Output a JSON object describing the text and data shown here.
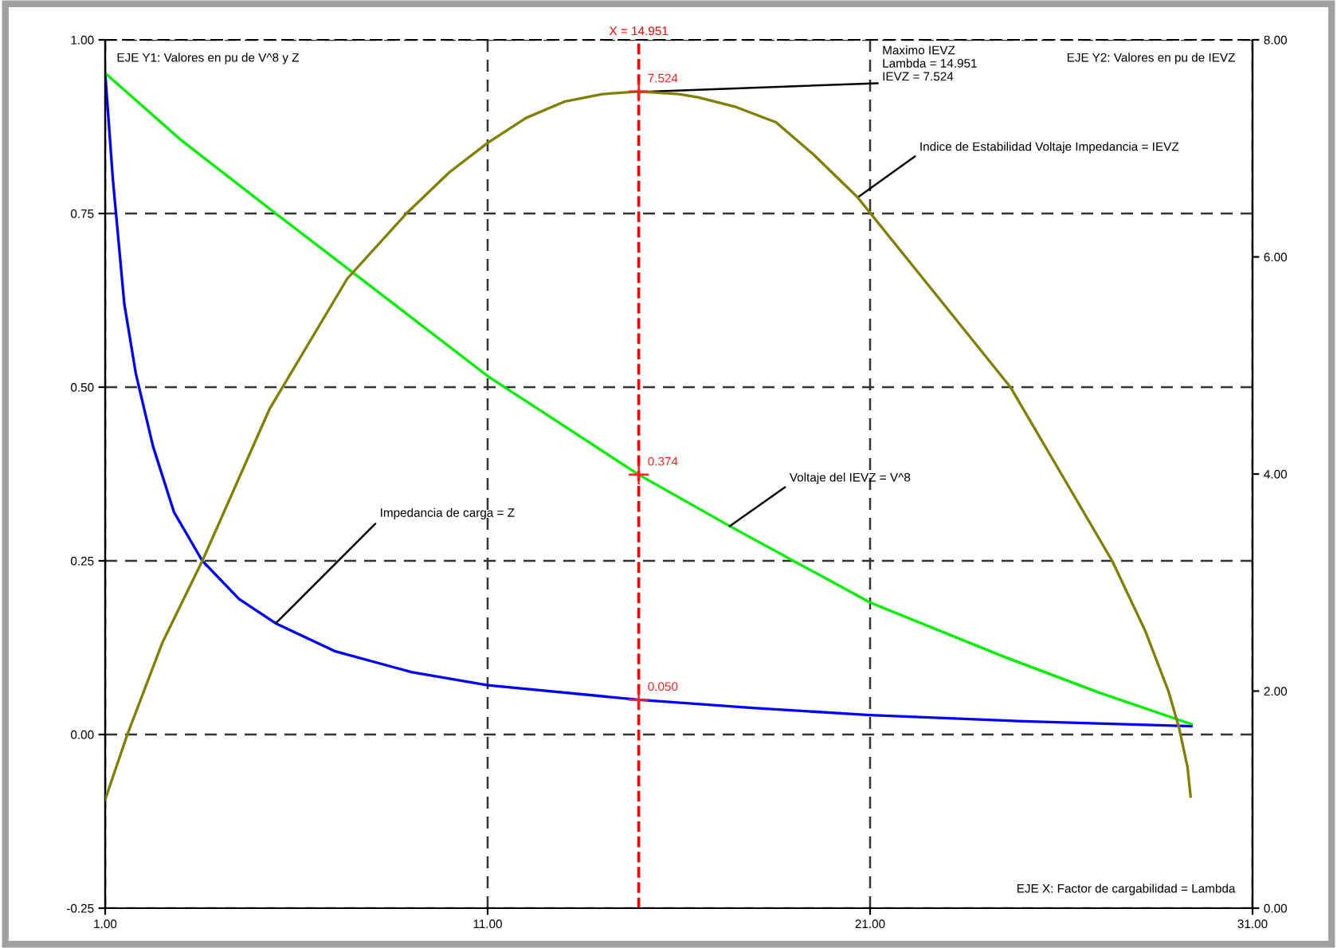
{
  "chart_data": {
    "type": "line",
    "xlim": [
      1,
      31
    ],
    "xticks": [
      {
        "value": 1,
        "label": "1.00"
      },
      {
        "value": 11,
        "label": "11.00"
      },
      {
        "value": 21,
        "label": "21.00"
      },
      {
        "value": 31,
        "label": "31.00"
      }
    ],
    "ylim": [
      -0.25,
      1.0
    ],
    "yticks": [
      {
        "value": -0.25,
        "label": "-0.25"
      },
      {
        "value": 0,
        "label": "0.00"
      },
      {
        "value": 0.25,
        "label": "0.25"
      },
      {
        "value": 0.5,
        "label": "0.50"
      },
      {
        "value": 0.75,
        "label": "0.75"
      },
      {
        "value": 1.0,
        "label": "1.00"
      }
    ],
    "y2lim": [
      0,
      8
    ],
    "y2ticks": [
      {
        "value": 0,
        "label": "0.00"
      },
      {
        "value": 2,
        "label": "2.00"
      },
      {
        "value": 4,
        "label": "4.00"
      },
      {
        "value": 6,
        "label": "6.00"
      },
      {
        "value": 8,
        "label": "8.00"
      }
    ],
    "grid": true,
    "marker": "none",
    "line_style": "solid",
    "series": [
      {
        "color": "#0000ff",
        "x": [
          1,
          1.2,
          1.5,
          1.8,
          2.25,
          2.8,
          3.54,
          4.5,
          5.46,
          7,
          9,
          11,
          14.951,
          18,
          21,
          25,
          29.4
        ],
        "values": [
          0.952,
          0.8,
          0.62,
          0.52,
          0.415,
          0.32,
          0.25,
          0.195,
          0.16,
          0.12,
          0.09,
          0.071,
          0.05,
          0.038,
          0.028,
          0.019,
          0.012
        ],
        "value_labels": [
          null,
          null,
          null,
          null,
          null,
          null,
          null,
          null,
          null,
          null,
          null,
          null,
          "0.050",
          null,
          null,
          null,
          null
        ]
      },
      {
        "color": "#00ee00",
        "x": [
          1,
          3,
          5.46,
          8,
          11,
          14.951,
          17.33,
          21,
          24.5,
          27,
          29.4
        ],
        "values": [
          0.952,
          0.855,
          0.75,
          0.643,
          0.516,
          0.374,
          0.3,
          0.19,
          0.112,
          0.06,
          0.015
        ],
        "value_labels": [
          null,
          null,
          null,
          null,
          null,
          "0.374",
          null,
          null,
          null,
          null,
          null
        ]
      },
      {
        "color": "#808000",
        "axis": "y2",
        "x": [
          1,
          1.58,
          2.5,
          3.54,
          5.3,
          7.33,
          8.875,
          10,
          11,
          12,
          13,
          14,
          14.951,
          16,
          16.5,
          17.5,
          18.54,
          19.5,
          20.67,
          22.5,
          24.67,
          26,
          27.33,
          28.2,
          28.8,
          29.08,
          29.3,
          29.38
        ],
        "values": [
          1.0,
          1.6,
          2.45,
          3.2,
          4.6,
          5.8,
          6.4,
          6.78,
          7.05,
          7.28,
          7.43,
          7.5,
          7.524,
          7.5,
          7.47,
          7.38,
          7.24,
          6.95,
          6.55,
          5.75,
          4.8,
          4.0,
          3.2,
          2.55,
          2.0,
          1.66,
          1.3,
          1.03
        ],
        "value_labels": [
          null,
          null,
          null,
          null,
          null,
          null,
          null,
          null,
          null,
          null,
          null,
          null,
          "7.524",
          null,
          null,
          null,
          null,
          null,
          null,
          null,
          null,
          null,
          null,
          null,
          null,
          null,
          null,
          null
        ]
      }
    ],
    "ref_lines": [
      {
        "axis": "x",
        "value": 14.951,
        "label": "X = 14.951",
        "color": "#ff0000",
        "line_style": "dashed"
      }
    ],
    "annotations": [
      "EJE Y1: Valores en pu de V^8 y Z",
      "EJE Y2: Valores en pu de IEVZ",
      "EJE X: Factor de cargabilidad = Lambda",
      {
        "text": "Maximo IEVZ\nLambda = 14.951\nIEVZ = 7.524",
        "x": 14.951,
        "y": 0.925
      },
      {
        "text": "Indice de Estabilidad Voltaje Impedancia = IEVZ",
        "x": 20.67,
        "y": 0.773
      },
      {
        "text": "Voltaje del IEVZ = V^8",
        "x": 17.33,
        "y": 0.3
      },
      {
        "text": "Impedancia de carga = Z",
        "x": 5.46,
        "y": 0.16
      }
    ]
  }
}
